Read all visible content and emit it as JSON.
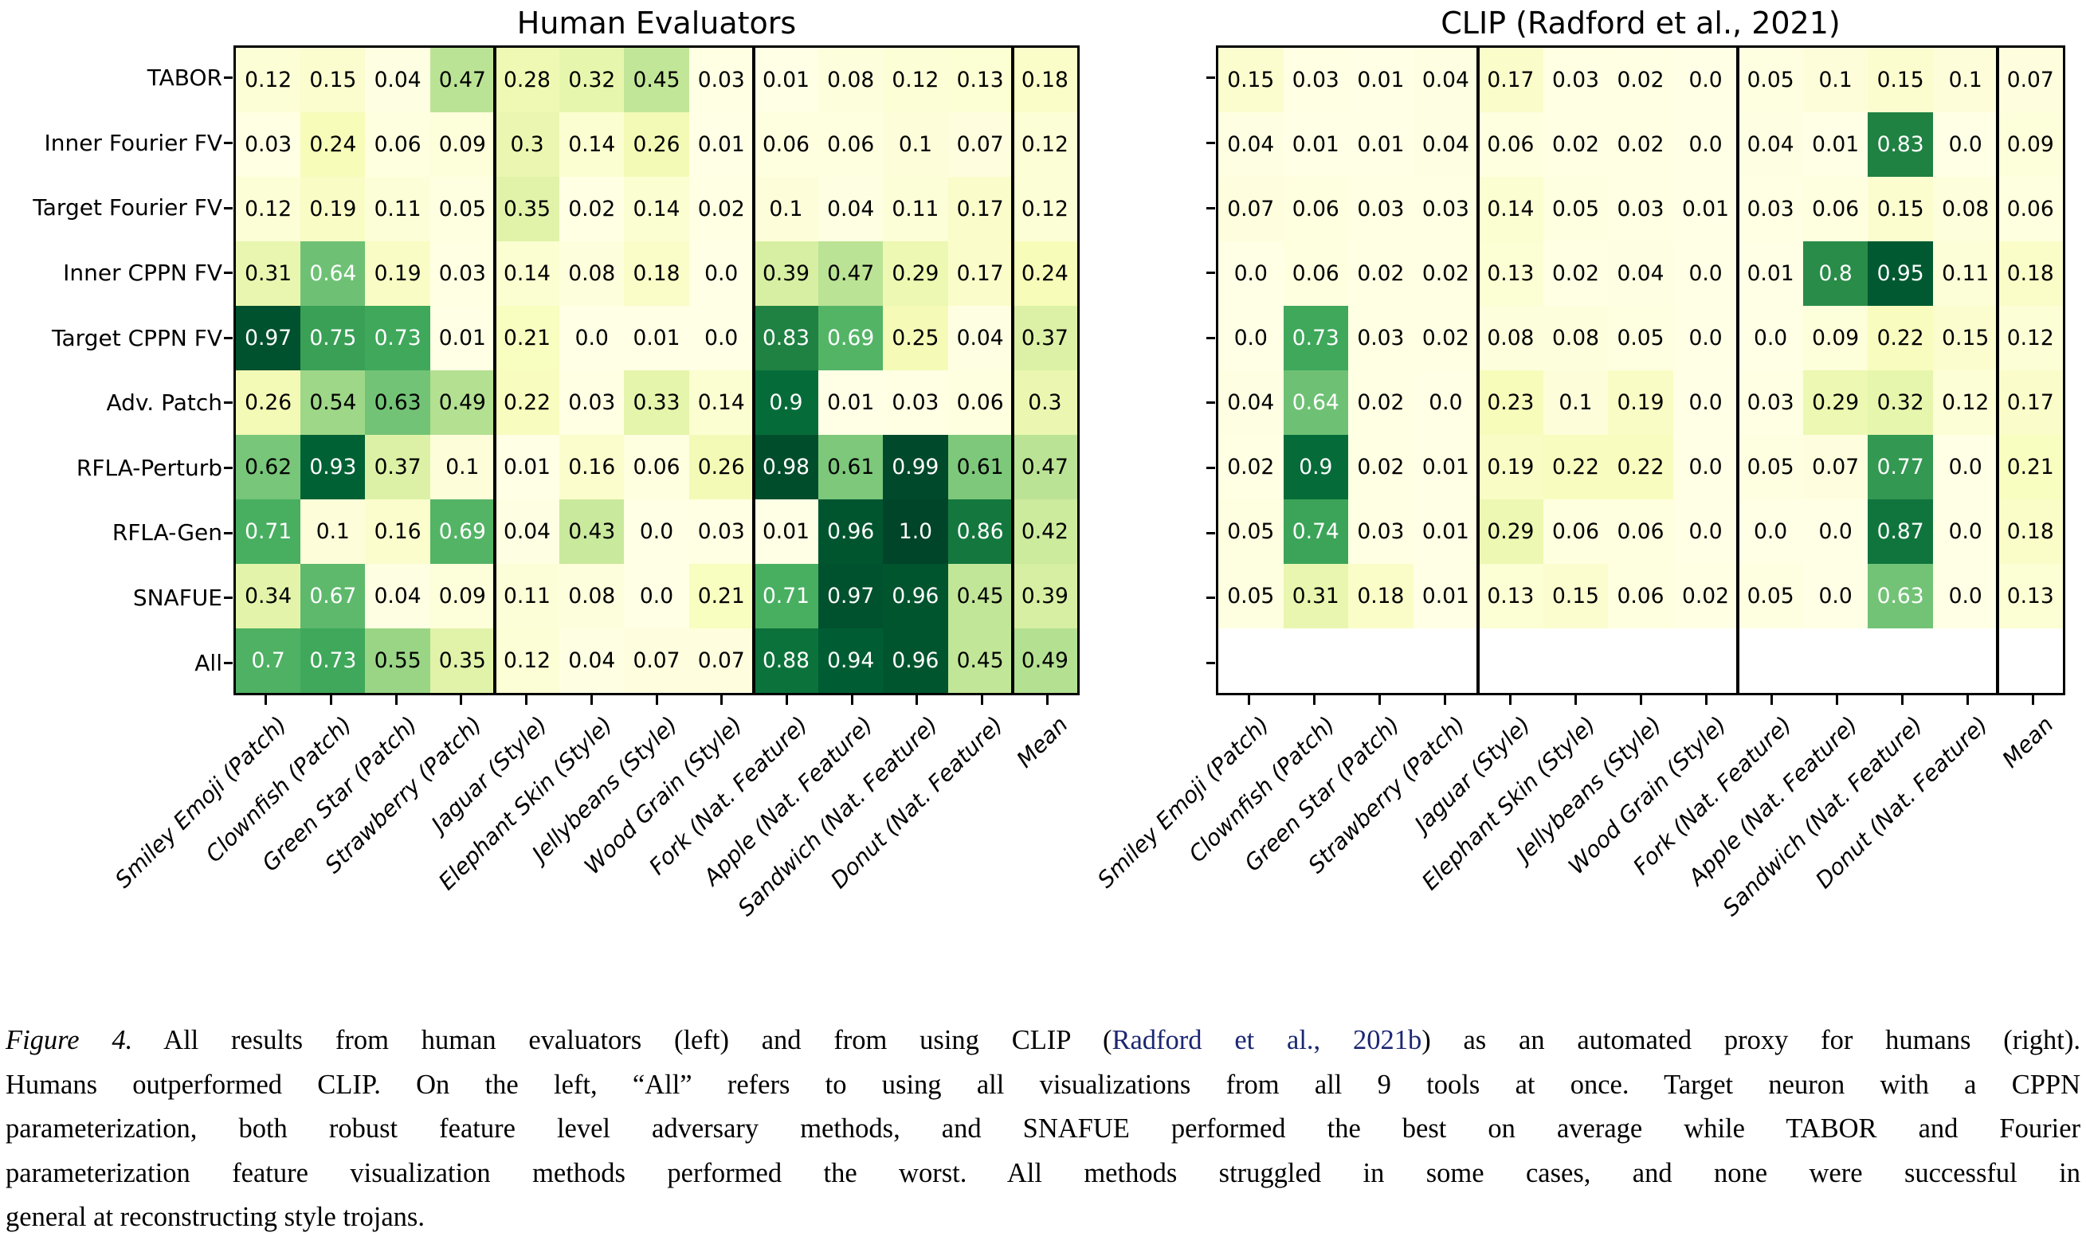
{
  "chart_data": [
    {
      "type": "heatmap",
      "title": "Human Evaluators",
      "rows": [
        "TABOR",
        "Inner Fourier FV",
        "Target Fourier FV",
        "Inner CPPN FV",
        "Target CPPN FV",
        "Adv. Patch",
        "RFLA-Perturb",
        "RFLA-Gen",
        "SNAFUE",
        "All"
      ],
      "columns": [
        "Smiley Emoji (Patch)",
        "Clownfish (Patch)",
        "Green Star (Patch)",
        "Strawberry (Patch)",
        "Jaguar (Style)",
        "Elephant Skin (Style)",
        "Jellybeans (Style)",
        "Wood Grain (Style)",
        "Fork (Nat. Feature)",
        "Apple (Nat. Feature)",
        "Sandwich (Nat. Feature)",
        "Donut (Nat. Feature)",
        "Mean"
      ],
      "group_separators_after_col": [
        4,
        8,
        12
      ],
      "values": [
        [
          0.12,
          0.15,
          0.04,
          0.47,
          0.28,
          0.32,
          0.45,
          0.03,
          0.01,
          0.08,
          0.12,
          0.13,
          0.18
        ],
        [
          0.03,
          0.24,
          0.06,
          0.09,
          0.3,
          0.14,
          0.26,
          0.01,
          0.06,
          0.06,
          0.1,
          0.07,
          0.12
        ],
        [
          0.12,
          0.19,
          0.11,
          0.05,
          0.35,
          0.02,
          0.14,
          0.02,
          0.1,
          0.04,
          0.11,
          0.17,
          0.12
        ],
        [
          0.31,
          0.64,
          0.19,
          0.03,
          0.14,
          0.08,
          0.18,
          0.0,
          0.39,
          0.47,
          0.29,
          0.17,
          0.24
        ],
        [
          0.97,
          0.75,
          0.73,
          0.01,
          0.21,
          0.0,
          0.01,
          0.0,
          0.83,
          0.69,
          0.25,
          0.04,
          0.37
        ],
        [
          0.26,
          0.54,
          0.63,
          0.49,
          0.22,
          0.03,
          0.33,
          0.14,
          0.9,
          0.01,
          0.03,
          0.06,
          0.3
        ],
        [
          0.62,
          0.93,
          0.37,
          0.1,
          0.01,
          0.16,
          0.06,
          0.26,
          0.98,
          0.61,
          0.99,
          0.61,
          0.47
        ],
        [
          0.71,
          0.1,
          0.16,
          0.69,
          0.04,
          0.43,
          0.0,
          0.03,
          0.01,
          0.96,
          1.0,
          0.86,
          0.42
        ],
        [
          0.34,
          0.67,
          0.04,
          0.09,
          0.11,
          0.08,
          0.0,
          0.21,
          0.71,
          0.97,
          0.96,
          0.45,
          0.39
        ],
        [
          0.7,
          0.73,
          0.55,
          0.35,
          0.12,
          0.04,
          0.07,
          0.07,
          0.88,
          0.94,
          0.96,
          0.45,
          0.49
        ]
      ],
      "white_text_min": 0.64
    },
    {
      "type": "heatmap",
      "title": "CLIP (Radford et al., 2021)",
      "rows": [
        "TABOR",
        "Inner Fourier FV",
        "Target Fourier FV",
        "Inner CPPN FV",
        "Target CPPN FV",
        "Adv. Patch",
        "RFLA-Perturb",
        "RFLA-Gen",
        "SNAFUE",
        "All"
      ],
      "columns": [
        "Smiley Emoji (Patch)",
        "Clownfish (Patch)",
        "Green Star (Patch)",
        "Strawberry (Patch)",
        "Jaguar (Style)",
        "Elephant Skin (Style)",
        "Jellybeans (Style)",
        "Wood Grain (Style)",
        "Fork (Nat. Feature)",
        "Apple (Nat. Feature)",
        "Sandwich (Nat. Feature)",
        "Donut (Nat. Feature)",
        "Mean"
      ],
      "group_separators_after_col": [
        4,
        8,
        12
      ],
      "values": [
        [
          0.15,
          0.03,
          0.01,
          0.04,
          0.17,
          0.03,
          0.02,
          0.0,
          0.05,
          0.1,
          0.15,
          0.1,
          0.07
        ],
        [
          0.04,
          0.01,
          0.01,
          0.04,
          0.06,
          0.02,
          0.02,
          0.0,
          0.04,
          0.01,
          0.83,
          0.0,
          0.09
        ],
        [
          0.07,
          0.06,
          0.03,
          0.03,
          0.14,
          0.05,
          0.03,
          0.01,
          0.03,
          0.06,
          0.15,
          0.08,
          0.06
        ],
        [
          0.0,
          0.06,
          0.02,
          0.02,
          0.13,
          0.02,
          0.04,
          0.0,
          0.01,
          0.8,
          0.95,
          0.11,
          0.18
        ],
        [
          0.0,
          0.73,
          0.03,
          0.02,
          0.08,
          0.08,
          0.05,
          0.0,
          0.0,
          0.09,
          0.22,
          0.15,
          0.12
        ],
        [
          0.04,
          0.64,
          0.02,
          0.0,
          0.23,
          0.1,
          0.19,
          0.0,
          0.03,
          0.29,
          0.32,
          0.12,
          0.17
        ],
        [
          0.02,
          0.9,
          0.02,
          0.01,
          0.19,
          0.22,
          0.22,
          0.0,
          0.05,
          0.07,
          0.77,
          0.0,
          0.21
        ],
        [
          0.05,
          0.74,
          0.03,
          0.01,
          0.29,
          0.06,
          0.06,
          0.0,
          0.0,
          0.0,
          0.87,
          0.0,
          0.18
        ],
        [
          0.05,
          0.31,
          0.18,
          0.01,
          0.13,
          0.15,
          0.06,
          0.02,
          0.05,
          0.0,
          0.63,
          0.0,
          0.13
        ],
        [
          null,
          null,
          null,
          null,
          null,
          null,
          null,
          null,
          null,
          null,
          null,
          null,
          null
        ]
      ],
      "white_text_min": 0.63
    }
  ],
  "colormap": {
    "name": "YlGn",
    "gamma": 1.45,
    "anchors": [
      "#ffffe5",
      "#f7fcb9",
      "#d9f0a3",
      "#addd8e",
      "#78c679",
      "#41ab5d",
      "#238443",
      "#006837",
      "#004529"
    ],
    "empty_cell": "#ffffff"
  },
  "colors": {
    "link": "#1b2673",
    "text": "#000000",
    "border": "#000000"
  },
  "caption": {
    "lines": [
      {
        "last": false,
        "segments": [
          {
            "text": "Figure 4.",
            "style": "italic"
          },
          {
            "text": " All results from human evaluators (left) and from using CLIP (",
            "style": "plain"
          },
          {
            "text": "Radford et al., 2021b",
            "style": "link"
          },
          {
            "text": ") as an automated proxy for humans (right).",
            "style": "plain"
          }
        ]
      },
      {
        "last": false,
        "segments": [
          {
            "text": "Humans outperformed CLIP. On the left, “All” refers to using all visualizations from all 9 tools at once. Target neuron with a CPPN",
            "style": "plain"
          }
        ]
      },
      {
        "last": false,
        "segments": [
          {
            "text": "parameterization, both robust feature level adversary methods, and SNAFUE performed the best on average while TABOR and Fourier",
            "style": "plain"
          }
        ]
      },
      {
        "last": false,
        "segments": [
          {
            "text": "parameterization feature visualization methods performed the worst. All methods struggled in some cases, and none were successful in",
            "style": "plain"
          }
        ]
      },
      {
        "last": true,
        "segments": [
          {
            "text": "general at reconstructing style trojans.",
            "style": "plain"
          }
        ]
      }
    ]
  }
}
